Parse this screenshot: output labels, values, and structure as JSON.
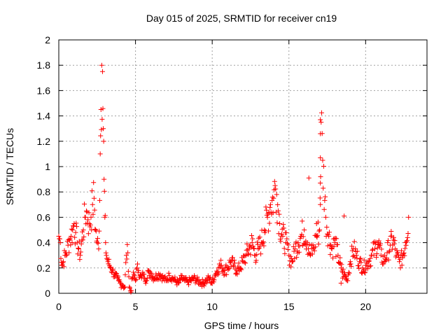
{
  "chart_data": {
    "type": "scatter",
    "title": "Day 015 of 2025, SRMTID for receiver cn19",
    "xlabel": "GPS time / hours",
    "ylabel": "SRMTID / TECUs",
    "xlim": [
      0,
      24
    ],
    "ylim": [
      0,
      2
    ],
    "xticks": [
      0,
      5,
      10,
      15,
      20
    ],
    "xtick_labels": [
      "0",
      "5",
      "10",
      "15",
      "20"
    ],
    "yticks": [
      0,
      0.2,
      0.4,
      0.6,
      0.8,
      1,
      1.2,
      1.4,
      1.6,
      1.8,
      2
    ],
    "ytick_labels": [
      "0",
      "0.2",
      "0.4",
      "0.6",
      "0.8",
      "1",
      "1.2",
      "1.4",
      "1.6",
      "1.8",
      "2"
    ],
    "grid": true,
    "marker": "+",
    "color": "#ff0000",
    "series": [
      {
        "name": "SRMTID",
        "x": [
          0.0,
          0.1,
          0.2,
          0.3,
          0.4,
          0.5,
          0.6,
          0.7,
          0.8,
          0.9,
          1.0,
          1.1,
          1.2,
          1.3,
          1.4,
          1.5,
          1.6,
          1.7,
          1.8,
          1.9,
          2.0,
          2.1,
          2.2,
          2.3,
          2.4,
          2.5,
          2.6,
          2.7,
          2.75,
          2.8,
          2.85,
          2.9,
          2.95,
          3.0,
          3.05,
          3.1,
          3.2,
          3.3,
          3.4,
          3.5,
          3.6,
          3.7,
          3.8,
          3.9,
          4.0,
          4.1,
          4.2,
          4.3,
          4.4,
          4.5,
          4.6,
          4.7,
          4.8,
          4.9,
          5.0,
          5.1,
          5.2,
          5.3,
          5.4,
          5.5,
          5.6,
          5.7,
          5.8,
          5.9,
          6.0,
          6.2,
          6.4,
          6.6,
          6.8,
          7.0,
          7.2,
          7.4,
          7.6,
          7.8,
          8.0,
          8.2,
          8.4,
          8.6,
          8.8,
          9.0,
          9.2,
          9.4,
          9.6,
          9.8,
          10.0,
          10.2,
          10.4,
          10.6,
          10.8,
          11.0,
          11.2,
          11.4,
          11.6,
          11.8,
          12.0,
          12.2,
          12.4,
          12.6,
          12.8,
          13.0,
          13.2,
          13.4,
          13.6,
          13.8,
          14.0,
          14.1,
          14.2,
          14.4,
          14.6,
          14.8,
          15.0,
          15.2,
          15.4,
          15.6,
          15.8,
          16.0,
          16.2,
          16.4,
          16.6,
          16.8,
          17.0,
          17.1,
          17.2,
          17.4,
          17.6,
          17.8,
          18.0,
          18.2,
          18.4,
          18.6,
          18.8,
          19.0,
          19.2,
          19.4,
          19.6,
          19.8,
          20.0,
          20.2,
          20.4,
          20.6,
          20.8,
          21.0,
          21.2,
          21.4,
          21.6,
          21.8,
          22.0,
          22.2,
          22.4,
          22.6,
          22.8
        ],
        "y": [
          0.45,
          0.4,
          0.22,
          0.25,
          0.3,
          0.32,
          0.38,
          0.42,
          0.45,
          0.5,
          0.55,
          0.48,
          0.4,
          0.35,
          0.3,
          0.42,
          0.5,
          0.6,
          0.65,
          0.58,
          0.55,
          0.6,
          0.7,
          0.75,
          0.5,
          0.4,
          0.35,
          1.1,
          1.45,
          1.8,
          1.75,
          1.3,
          0.9,
          0.6,
          0.4,
          0.3,
          0.25,
          0.22,
          0.2,
          0.18,
          0.15,
          0.14,
          0.12,
          0.1,
          0.08,
          0.07,
          0.06,
          0.05,
          0.3,
          0.32,
          0.05,
          0.01,
          0.12,
          0.15,
          0.1,
          0.2,
          0.18,
          0.14,
          0.12,
          0.15,
          0.12,
          0.1,
          0.18,
          0.14,
          0.16,
          0.12,
          0.14,
          0.15,
          0.12,
          0.1,
          0.14,
          0.12,
          0.1,
          0.08,
          0.12,
          0.1,
          0.09,
          0.1,
          0.12,
          0.1,
          0.09,
          0.08,
          0.1,
          0.12,
          0.08,
          0.15,
          0.2,
          0.22,
          0.18,
          0.2,
          0.25,
          0.22,
          0.18,
          0.2,
          0.25,
          0.3,
          0.35,
          0.4,
          0.3,
          0.35,
          0.4,
          0.5,
          0.6,
          0.7,
          0.75,
          0.85,
          0.78,
          0.55,
          0.45,
          0.4,
          0.3,
          0.25,
          0.35,
          0.4,
          0.45,
          0.5,
          0.4,
          0.3,
          0.35,
          0.45,
          0.5,
          1.35,
          1.05,
          0.6,
          0.45,
          0.35,
          0.4,
          0.3,
          0.2,
          0.15,
          0.1,
          0.25,
          0.35,
          0.3,
          0.25,
          0.2,
          0.22,
          0.25,
          0.3,
          0.35,
          0.4,
          0.3,
          0.25,
          0.32,
          0.38,
          0.42,
          0.3,
          0.25,
          0.28,
          0.4,
          0.6
        ]
      }
    ],
    "outliers": [
      {
        "x": 16.3,
        "y": 0.91
      },
      {
        "x": 17.05,
        "y": 1.37
      },
      {
        "x": 17.05,
        "y": 1.26
      },
      {
        "x": 17.05,
        "y": 1.07
      },
      {
        "x": 17.05,
        "y": 0.87
      },
      {
        "x": 17.05,
        "y": 0.7
      },
      {
        "x": 18.6,
        "y": 0.61
      },
      {
        "x": 18.4,
        "y": 0.08
      },
      {
        "x": 18.5,
        "y": 0.12
      },
      {
        "x": 16.8,
        "y": 0.55
      }
    ]
  }
}
